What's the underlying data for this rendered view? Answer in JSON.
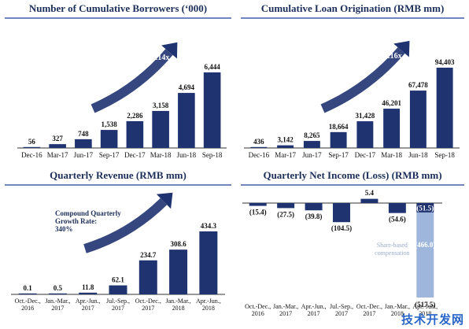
{
  "colors": {
    "bar": "#1f3370",
    "bar_light": "#9fb6dc",
    "title": "#1c2f5a",
    "rule": "#6f86c0",
    "arrow": "#1f3370"
  },
  "chart_data": [
    {
      "type": "bar",
      "title": "Number of Cumulative Borrowers (‘000)",
      "categories": [
        "Dec-16",
        "Mar-17",
        "Jun-17",
        "Sep-17",
        "Dec-17",
        "Mar-18",
        "Jun-18",
        "Sep-18"
      ],
      "values": [
        56,
        327,
        748,
        1538,
        2286,
        3158,
        4694,
        6444
      ],
      "value_labels": [
        "56",
        "327",
        "748",
        "1,538",
        "2,286",
        "3,158",
        "4,694",
        "6,444"
      ],
      "annotation": "~114x",
      "ylim": [
        0,
        6444
      ]
    },
    {
      "type": "bar",
      "title": "Cumulative Loan Origination (RMB mm)",
      "categories": [
        "Dec-16",
        "Mar-17",
        "Jun-17",
        "Sep-17",
        "Dec-17",
        "Mar-18",
        "Jun-18",
        "Sep-18"
      ],
      "values": [
        436,
        3142,
        8265,
        18664,
        31428,
        46201,
        67478,
        94403
      ],
      "value_labels": [
        "436",
        "3,142",
        "8,265",
        "18,664",
        "31,428",
        "46,201",
        "67,478",
        "94,403"
      ],
      "annotation": "~216x",
      "ylim": [
        0,
        94403
      ]
    },
    {
      "type": "bar",
      "title": "Quarterly Revenue (RMB mm)",
      "categories": [
        "Oct.-Dec.,|2016",
        "Jan.-Mar.,|2017",
        "Apr.-Jun.,|2017",
        "Jul.-Sep.,|2017",
        "Oct.-Dec.,|2017",
        "Jan.-Mar.,|2018",
        "Apr.-Jun.,|2018"
      ],
      "values": [
        0.1,
        0.5,
        11.8,
        62.1,
        234.7,
        308.6,
        434.3
      ],
      "value_labels": [
        "0.1",
        "0.5",
        "11.8",
        "62.1",
        "234.7",
        "308.6",
        "434.3"
      ],
      "annotation": "Compound Quarterly|Growth Rate:|340%",
      "ylim": [
        0,
        434.3
      ]
    },
    {
      "type": "bar",
      "title": "Quarterly Net Income (Loss) (RMB mm)",
      "categories": [
        "Oct.-Dec.,|2016",
        "Jan.-Mar.,|2017",
        "Apr.-Jun.,|2017",
        "Jul.-Sep.,|2017",
        "Oct.-Dec.,|2017",
        "Jan.-Mar.,|2018",
        "Apr.-Jun.,|2018"
      ],
      "values": [
        -15.4,
        -27.5,
        -39.8,
        -104.5,
        5.4,
        -54.6,
        -517.5
      ],
      "value_labels": [
        "(15.4)",
        "(27.5)",
        "(39.8)",
        "(104.5)",
        "5.4",
        "(54.6)",
        "(517.5)"
      ],
      "split_last": {
        "core": -51.5,
        "core_label": "(51.5)",
        "share_based": -466.0,
        "share_based_label": "(466.0)",
        "share_based_note": "Share-based|compensation"
      },
      "ylim": [
        -517.5,
        5.4
      ]
    }
  ],
  "watermark": "技术开发网"
}
